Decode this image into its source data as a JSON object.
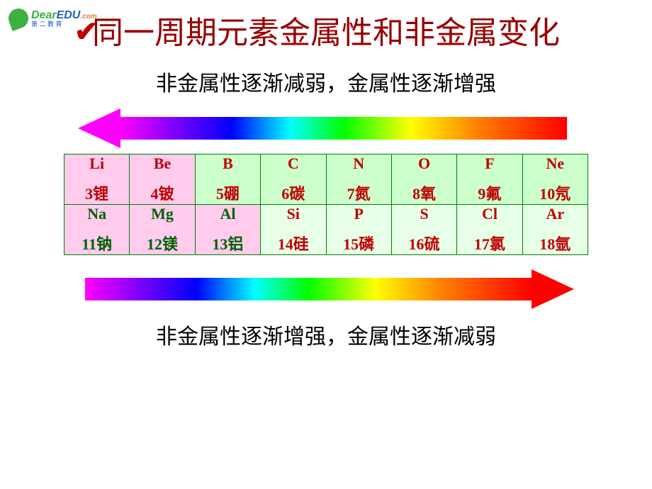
{
  "logo": {
    "brand_dear": "Dear",
    "brand_edu": "EDU",
    "brand_com": ".com",
    "subtitle": "第 二 教 育"
  },
  "checkmark": "✔",
  "title": "同一周期元素金属性和非金属变化",
  "top_caption": "非金属性逐渐减弱，金属性逐渐增强",
  "bottom_caption": "非金属性逐渐增强，金属性逐渐减弱",
  "table": {
    "rows": [
      [
        {
          "symbol": "Li",
          "num": "3",
          "name": "锂",
          "bg": "pink",
          "color": "#c00000"
        },
        {
          "symbol": "Be",
          "num": "4",
          "name": "铍",
          "bg": "pink",
          "color": "#c00000"
        },
        {
          "symbol": "B",
          "num": "5",
          "name": "硼",
          "bg": "green",
          "color": "#c00000"
        },
        {
          "symbol": "C",
          "num": "6",
          "name": "碳",
          "bg": "green",
          "color": "#c00000"
        },
        {
          "symbol": "N",
          "num": "7",
          "name": "氮",
          "bg": "green",
          "color": "#c00000"
        },
        {
          "symbol": "O",
          "num": "8",
          "name": "氧",
          "bg": "green",
          "color": "#c00000"
        },
        {
          "symbol": "F",
          "num": "9",
          "name": "氟",
          "bg": "green",
          "color": "#c00000"
        },
        {
          "symbol": "Ne",
          "num": "10",
          "name": "氖",
          "bg": "green",
          "color": "#c00000"
        }
      ],
      [
        {
          "symbol": "Na",
          "num": "11",
          "name": "钠",
          "bg": "pink",
          "color": "#006000"
        },
        {
          "symbol": "Mg",
          "num": "12",
          "name": "镁",
          "bg": "pink",
          "color": "#006000"
        },
        {
          "symbol": "Al",
          "num": "13",
          "name": "铝",
          "bg": "pink",
          "color": "#006000"
        },
        {
          "symbol": "Si",
          "num": "14",
          "name": "硅",
          "bg": "lightgreen",
          "color": "#c00000"
        },
        {
          "symbol": "P",
          "num": "15",
          "name": "磷",
          "bg": "lightgreen",
          "color": "#c00000"
        },
        {
          "symbol": "S",
          "num": "16",
          "name": "硫",
          "bg": "lightgreen",
          "color": "#c00000"
        },
        {
          "symbol": "Cl",
          "num": "17",
          "name": "氯",
          "bg": "lightgreen",
          "color": "#c00000"
        },
        {
          "symbol": "Ar",
          "num": "18",
          "name": "氩",
          "bg": "lightgreen",
          "color": "#c00000"
        }
      ]
    ]
  },
  "colors": {
    "title_color": "#990000",
    "text_color": "#000000",
    "border_color": "#008000",
    "pink_bg": "#ffccee",
    "green_bg": "#ccffcc",
    "lightgreen_bg": "#e6ffe6"
  }
}
